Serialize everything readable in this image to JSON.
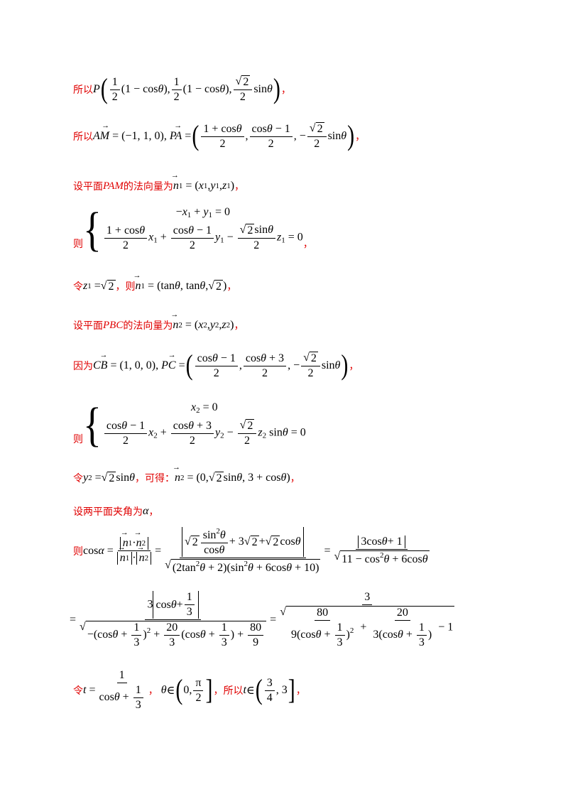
{
  "lines": {
    "l1_prefix": "所以",
    "l1_comma": "，",
    "l2_prefix": "所以",
    "l2_comma": "，",
    "l3_prefix": "设平面",
    "l3_plane": "PAM",
    "l3_mid": "的法向量为",
    "l3_comma": "，",
    "l4_prefix": "则",
    "l4_comma": "，",
    "l5_prefix": "令",
    "l5_mid": "，则",
    "l5_comma": "，",
    "l6_prefix": "设平面",
    "l6_plane": "PBC",
    "l6_mid": "的法向量为",
    "l6_comma": "，",
    "l7_prefix": "因为",
    "l7_comma": "，",
    "l8_prefix": "则",
    "l9_prefix": "令",
    "l9_mid": "，可得：",
    "l9_comma": "，",
    "l10_prefix": "设两平面夹角为",
    "l10_comma": "，",
    "l11_prefix": "则",
    "l13_prefix": "令",
    "l13_mid": "，",
    "l13_so": "，所以",
    "l13_comma": "，"
  }
}
